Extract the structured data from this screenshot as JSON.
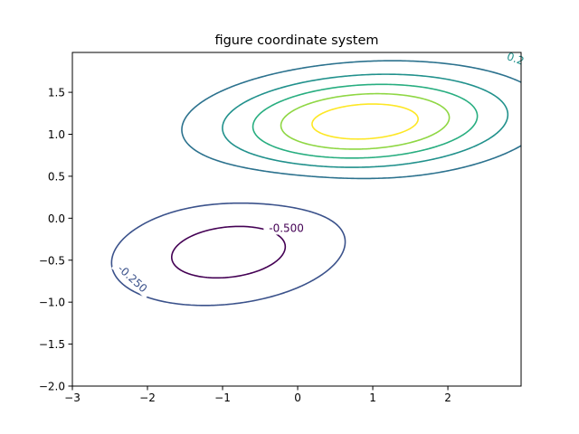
{
  "chart_data": {
    "type": "contour",
    "title": "figure coordinate system",
    "xlabel": "",
    "ylabel": "",
    "xlim": [
      -3.0,
      2.975
    ],
    "ylim": [
      -2.0,
      1.975
    ],
    "x_ticks": [
      -3,
      -2,
      -1,
      0,
      1,
      2
    ],
    "x_tick_labels": [
      "−3",
      "−2",
      "−1",
      "0",
      "1",
      "2"
    ],
    "y_ticks": [
      -2.0,
      -1.5,
      -1.0,
      -0.5,
      0.0,
      0.5,
      1.0,
      1.5
    ],
    "y_tick_labels": [
      "−2.0",
      "−1.5",
      "−1.0",
      "−0.5",
      "0.0",
      "0.5",
      "1.0",
      "1.5"
    ],
    "grid": false,
    "levels": [
      {
        "value": -0.5,
        "color": "#440154"
      },
      {
        "value": -0.25,
        "color": "#3b528b"
      },
      {
        "value": 0.25,
        "color": "#2c728e"
      },
      {
        "value": 0.5,
        "color": "#21918c"
      },
      {
        "value": 0.75,
        "color": "#28ae80"
      },
      {
        "value": 1.0,
        "color": "#8fd744"
      },
      {
        "value": 1.25,
        "color": "#fde725"
      }
    ],
    "contour_labels": [
      {
        "text": "-0.500",
        "x": -0.15,
        "y": -0.12,
        "rotation": 0,
        "color": "#440154"
      },
      {
        "text": "-0.250",
        "x": -2.2,
        "y": -0.72,
        "rotation": 42,
        "color": "#3b528b"
      },
      {
        "text": "0.2",
        "x": 2.9,
        "y": 1.9,
        "rotation": 20,
        "color": "#21918c"
      }
    ]
  }
}
